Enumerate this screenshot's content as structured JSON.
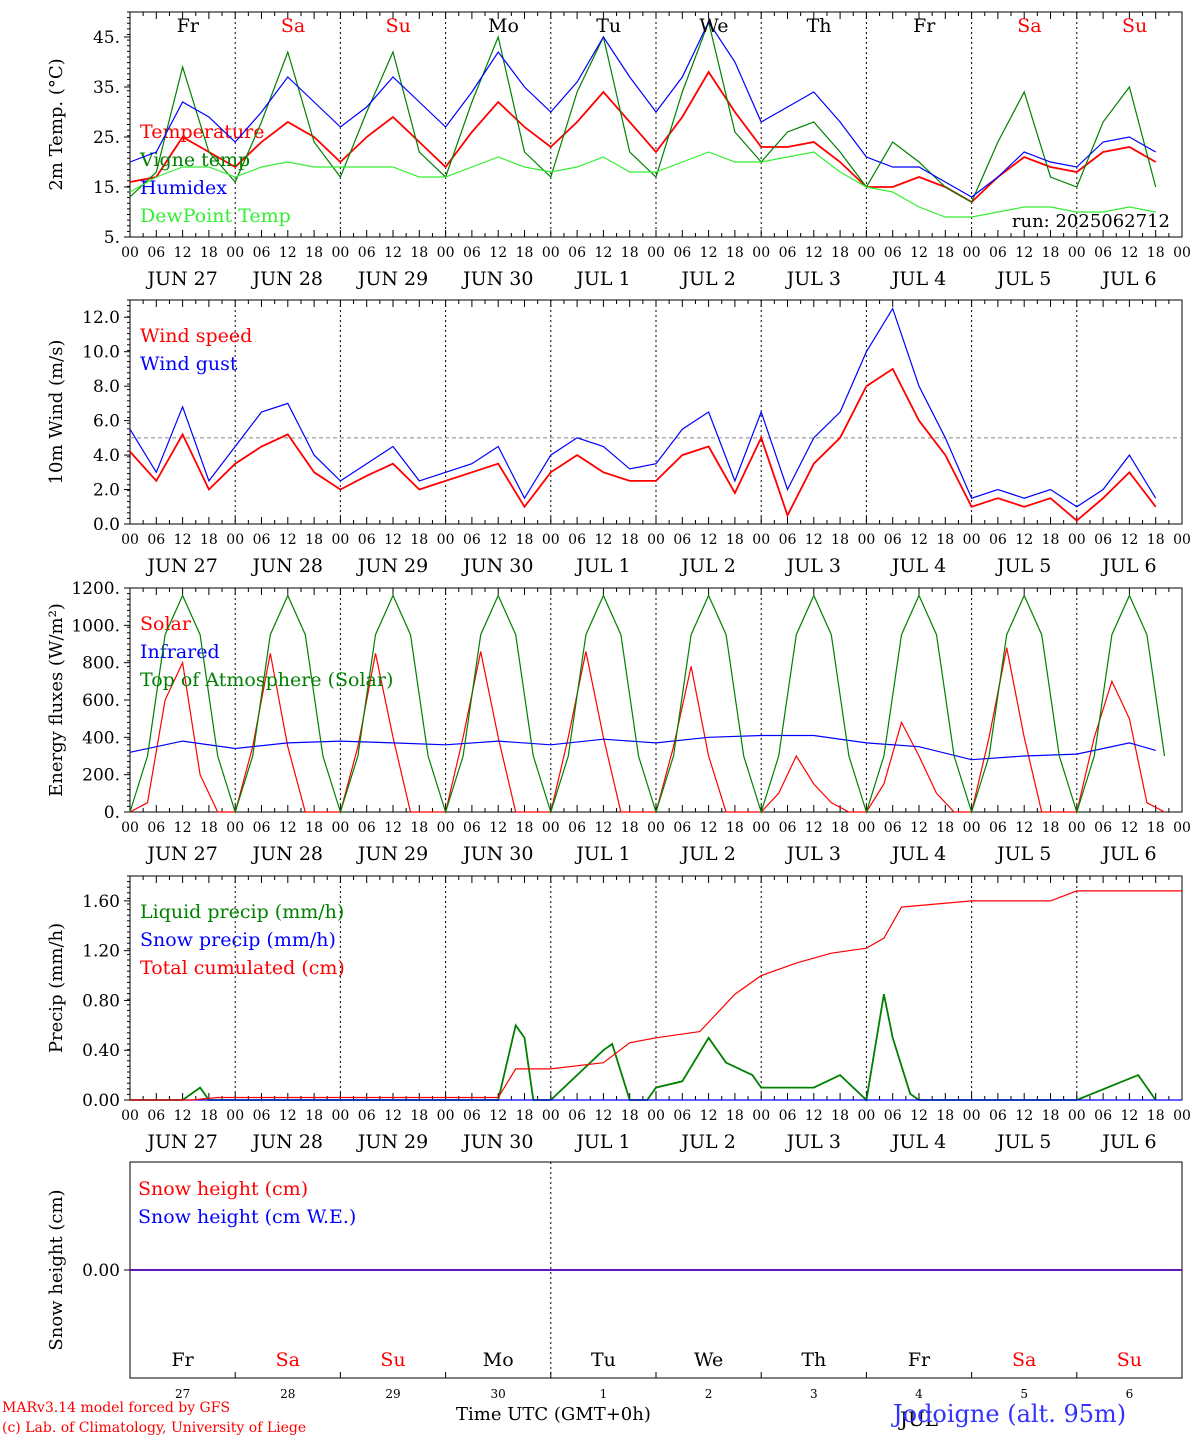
{
  "days": [
    "Fr",
    "Sa",
    "Su",
    "Mo",
    "Tu",
    "We",
    "Th",
    "Fr",
    "Sa",
    "Su"
  ],
  "weekend_color": "#ff0000",
  "dates": [
    "JUN 27",
    "JUN 28",
    "JUN 29",
    "JUN 30",
    "JUL  1",
    "JUL  2",
    "JUL  3",
    "JUL  4",
    "JUL  5",
    "JUL  6"
  ],
  "hour_ticks": [
    "00",
    "06",
    "12",
    "18"
  ],
  "day_numbers": [
    "27",
    "28",
    "29",
    "30",
    "1",
    "2",
    "3",
    "4",
    "5",
    "6"
  ],
  "month_label": "JUL",
  "run_label": "run: 2025062712",
  "footer": {
    "model": "MARv3.14 model forced by GFS",
    "lab": "(c) Lab. of Climatology, University of Liege",
    "xlabel": "Time UTC (GMT+0h)",
    "location": "Jodoigne (alt. 95m)"
  },
  "chart_data": [
    {
      "type": "line",
      "ylabel": "2m Temp. (°C)",
      "ylim": [
        5,
        50
      ],
      "yticks": [
        "5.",
        "15.",
        "25.",
        "35.",
        "45."
      ],
      "x_unit": "hours since 2025-06-27 00 UTC",
      "series": [
        {
          "name": "Temperature",
          "color": "#ff0000",
          "x": [
            0,
            6,
            12,
            18,
            24,
            30,
            36,
            42,
            48,
            54,
            60,
            66,
            72,
            78,
            84,
            90,
            96,
            102,
            108,
            114,
            120,
            126,
            132,
            138,
            144,
            150,
            156,
            162,
            168,
            174,
            180,
            186,
            192,
            198,
            204,
            210,
            216,
            222,
            228,
            234
          ],
          "y": [
            16,
            17,
            25,
            22,
            19,
            24,
            28,
            25,
            20,
            25,
            29,
            24,
            19,
            26,
            32,
            27,
            23,
            28,
            34,
            28,
            22,
            29,
            38,
            30,
            23,
            23,
            24,
            20,
            15,
            15,
            17,
            15,
            12,
            17,
            21,
            19,
            18,
            22,
            23,
            20
          ]
        },
        {
          "name": "Vigne temp",
          "color": "#008000",
          "x": [
            0,
            6,
            12,
            18,
            24,
            30,
            36,
            42,
            48,
            54,
            60,
            66,
            72,
            78,
            84,
            90,
            96,
            102,
            108,
            114,
            120,
            126,
            132,
            138,
            144,
            150,
            156,
            162,
            168,
            174,
            180,
            186,
            192,
            198,
            204,
            210,
            216,
            222,
            228,
            234
          ],
          "y": [
            13,
            18,
            39,
            22,
            16,
            28,
            42,
            24,
            17,
            30,
            42,
            22,
            17,
            32,
            45,
            22,
            17,
            34,
            45,
            22,
            17,
            34,
            48,
            26,
            20,
            26,
            28,
            22,
            15,
            24,
            20,
            15,
            12,
            24,
            34,
            17,
            15,
            28,
            35,
            15
          ]
        },
        {
          "name": "Humidex",
          "color": "#0000ff",
          "x": [
            0,
            6,
            12,
            18,
            24,
            30,
            36,
            42,
            48,
            54,
            60,
            66,
            72,
            78,
            84,
            90,
            96,
            102,
            108,
            114,
            120,
            126,
            132,
            138,
            144,
            150,
            156,
            162,
            168,
            174,
            180,
            186,
            192,
            198,
            204,
            210,
            216,
            222,
            228,
            234
          ],
          "y": [
            20,
            22,
            32,
            29,
            24,
            30,
            37,
            32,
            27,
            31,
            37,
            32,
            27,
            34,
            42,
            35,
            30,
            36,
            45,
            37,
            30,
            37,
            48,
            40,
            28,
            31,
            34,
            28,
            21,
            19,
            19,
            16,
            13,
            17,
            22,
            20,
            19,
            24,
            25,
            22
          ]
        },
        {
          "name": "DewPoint Temp",
          "color": "#33ee33",
          "x": [
            0,
            6,
            12,
            18,
            24,
            30,
            36,
            42,
            48,
            54,
            60,
            66,
            72,
            78,
            84,
            90,
            96,
            102,
            108,
            114,
            120,
            126,
            132,
            138,
            144,
            150,
            156,
            162,
            168,
            174,
            180,
            186,
            192,
            198,
            204,
            210,
            216,
            222,
            228,
            234
          ],
          "y": [
            14,
            17,
            19,
            19,
            17,
            19,
            20,
            19,
            19,
            19,
            19,
            17,
            17,
            19,
            21,
            19,
            18,
            19,
            21,
            18,
            18,
            20,
            22,
            20,
            20,
            21,
            22,
            18,
            15,
            14,
            11,
            9,
            9,
            10,
            11,
            11,
            10,
            10,
            11,
            10
          ]
        }
      ]
    },
    {
      "type": "line",
      "ylabel": "10m Wind (m/s)",
      "ylim": [
        0,
        13
      ],
      "yticks": [
        "0.0",
        "2.0",
        "4.0",
        "6.0",
        "8.0",
        "10.0",
        "12.0"
      ],
      "reference_line": 5,
      "series": [
        {
          "name": "Wind speed",
          "color": "#ff0000",
          "x": [
            0,
            6,
            12,
            18,
            24,
            30,
            36,
            42,
            48,
            54,
            60,
            66,
            72,
            78,
            84,
            90,
            96,
            102,
            108,
            114,
            120,
            126,
            132,
            138,
            144,
            150,
            156,
            162,
            168,
            174,
            180,
            186,
            192,
            198,
            204,
            210,
            216,
            222,
            228,
            234
          ],
          "y": [
            4.2,
            2.5,
            5.2,
            2.0,
            3.5,
            4.5,
            5.2,
            3.0,
            2.0,
            2.8,
            3.5,
            2.0,
            2.5,
            3.0,
            3.5,
            1.0,
            3.0,
            4.0,
            3.0,
            2.5,
            2.5,
            4.0,
            4.5,
            1.8,
            5.0,
            0.5,
            3.5,
            5.0,
            8.0,
            9.0,
            6.0,
            4.0,
            1.0,
            1.5,
            1.0,
            1.5,
            0.2,
            1.5,
            3.0,
            1.0
          ]
        },
        {
          "name": "Wind gust",
          "color": "#0000ff",
          "x": [
            0,
            6,
            12,
            18,
            24,
            30,
            36,
            42,
            48,
            54,
            60,
            66,
            72,
            78,
            84,
            90,
            96,
            102,
            108,
            114,
            120,
            126,
            132,
            138,
            144,
            150,
            156,
            162,
            168,
            174,
            180,
            186,
            192,
            198,
            204,
            210,
            216,
            222,
            228,
            234
          ],
          "y": [
            5.5,
            3.0,
            6.8,
            2.5,
            4.5,
            6.5,
            7.0,
            4.0,
            2.5,
            3.5,
            4.5,
            2.5,
            3.0,
            3.5,
            4.5,
            1.5,
            4.0,
            5.0,
            4.5,
            3.2,
            3.5,
            5.5,
            6.5,
            2.5,
            6.5,
            2.0,
            5.0,
            6.5,
            10.0,
            12.5,
            8.0,
            5.0,
            1.5,
            2.0,
            1.5,
            2.0,
            1.0,
            2.0,
            4.0,
            1.5
          ]
        }
      ]
    },
    {
      "type": "line",
      "ylabel": "Energy fluxes (W/m²)",
      "ylim": [
        0,
        1200
      ],
      "yticks": [
        "0.",
        "200.",
        "400.",
        "600.",
        "800.",
        "1000.",
        "1200."
      ],
      "series": [
        {
          "name": "Solar",
          "color": "#ff0000",
          "x": [
            0,
            4,
            8,
            12,
            16,
            20,
            24,
            28,
            32,
            36,
            40,
            44,
            48,
            52,
            56,
            60,
            64,
            68,
            72,
            76,
            80,
            84,
            88,
            92,
            96,
            100,
            104,
            108,
            112,
            116,
            120,
            124,
            128,
            132,
            136,
            140,
            144,
            148,
            152,
            156,
            160,
            164,
            168,
            172,
            176,
            180,
            184,
            188,
            192,
            196,
            200,
            204,
            208,
            212,
            216,
            220,
            224,
            228,
            232,
            236
          ],
          "y": [
            0,
            50,
            600,
            800,
            200,
            0,
            0,
            350,
            850,
            350,
            0,
            0,
            0,
            350,
            850,
            400,
            0,
            0,
            0,
            400,
            860,
            400,
            0,
            0,
            0,
            400,
            860,
            400,
            0,
            0,
            0,
            350,
            780,
            300,
            0,
            0,
            0,
            100,
            300,
            150,
            50,
            0,
            0,
            150,
            480,
            300,
            100,
            0,
            0,
            400,
            880,
            400,
            0,
            0,
            0,
            400,
            700,
            500,
            50,
            0
          ]
        },
        {
          "name": "Infrared",
          "color": "#0000ff",
          "x": [
            0,
            12,
            24,
            36,
            48,
            60,
            72,
            84,
            96,
            108,
            120,
            132,
            144,
            156,
            168,
            180,
            192,
            204,
            216,
            228,
            234
          ],
          "y": [
            320,
            380,
            340,
            370,
            380,
            370,
            360,
            380,
            360,
            390,
            370,
            400,
            410,
            410,
            370,
            350,
            280,
            300,
            310,
            370,
            330
          ]
        },
        {
          "name": "Top of Atmosphere (Solar)",
          "color": "#008000",
          "x": [
            0,
            4,
            8,
            12,
            16,
            20,
            24,
            28,
            32,
            36,
            40,
            44,
            48,
            52,
            56,
            60,
            64,
            68,
            72,
            76,
            80,
            84,
            88,
            92,
            96,
            100,
            104,
            108,
            112,
            116,
            120,
            124,
            128,
            132,
            136,
            140,
            144,
            148,
            152,
            156,
            160,
            164,
            168,
            172,
            176,
            180,
            184,
            188,
            192,
            196,
            200,
            204,
            208,
            212,
            216,
            220,
            224,
            228,
            232,
            236
          ],
          "y": [
            0,
            300,
            950,
            1160,
            950,
            300,
            0,
            300,
            950,
            1160,
            950,
            300,
            0,
            300,
            950,
            1160,
            950,
            300,
            0,
            300,
            950,
            1160,
            950,
            300,
            0,
            300,
            950,
            1160,
            950,
            300,
            0,
            300,
            950,
            1160,
            950,
            300,
            0,
            300,
            950,
            1160,
            950,
            300,
            0,
            300,
            950,
            1160,
            950,
            300,
            0,
            300,
            950,
            1160,
            950,
            300,
            0,
            300,
            950,
            1160,
            950,
            300
          ]
        }
      ]
    },
    {
      "type": "line",
      "ylabel": "Precip (mm/h)",
      "ylim": [
        0,
        1.8
      ],
      "yticks": [
        "0.00",
        "0.40",
        "0.80",
        "1.20",
        "1.60"
      ],
      "series": [
        {
          "name": "Liquid precip (mm/h)",
          "color": "#008000",
          "x": [
            0,
            6,
            12,
            16,
            18,
            24,
            48,
            72,
            84,
            88,
            90,
            92,
            96,
            108,
            110,
            114,
            118,
            120,
            126,
            132,
            136,
            142,
            144,
            150,
            156,
            162,
            168,
            172,
            174,
            178,
            180,
            192,
            216,
            230,
            234
          ],
          "y": [
            0,
            0,
            0,
            0.1,
            0,
            0,
            0,
            0,
            0,
            0.6,
            0.5,
            0,
            0,
            0.4,
            0.45,
            0,
            0,
            0.1,
            0.15,
            0.5,
            0.3,
            0.2,
            0.1,
            0.1,
            0.1,
            0.2,
            0,
            0.85,
            0.5,
            0.05,
            0,
            0,
            0,
            0.2,
            0
          ]
        },
        {
          "name": "Snow precip (mm/h)",
          "color": "#0000ff",
          "x": [
            0,
            240
          ],
          "y": [
            0,
            0
          ]
        },
        {
          "name": "Total cumulated (cm)",
          "color": "#ff0000",
          "x": [
            0,
            14,
            20,
            48,
            72,
            84,
            88,
            96,
            108,
            114,
            120,
            130,
            138,
            144,
            152,
            160,
            168,
            172,
            176,
            192,
            210,
            216,
            240
          ],
          "y": [
            0,
            0,
            0.02,
            0.02,
            0.02,
            0.02,
            0.25,
            0.25,
            0.3,
            0.46,
            0.5,
            0.55,
            0.85,
            1.0,
            1.1,
            1.18,
            1.22,
            1.3,
            1.55,
            1.6,
            1.6,
            1.68,
            1.68
          ]
        }
      ]
    },
    {
      "type": "line",
      "ylabel": "Snow height (cm)",
      "ylim": [
        0,
        1
      ],
      "yticks": [
        "0.00"
      ],
      "series": [
        {
          "name": "Snow height (cm)",
          "color": "#ff0000",
          "x": [
            0,
            240
          ],
          "y": [
            0,
            0
          ]
        },
        {
          "name": "Snow height (cm W.E.)",
          "color": "#0000ff",
          "x": [
            0,
            240
          ],
          "y": [
            0,
            0
          ]
        }
      ]
    }
  ]
}
